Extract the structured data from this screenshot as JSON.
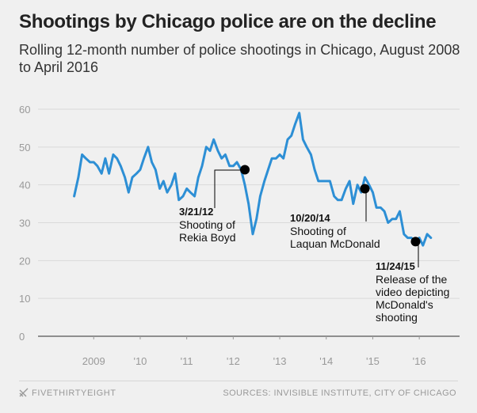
{
  "header": {
    "title": "Shootings by Chicago police are on the decline",
    "subtitle": "Rolling 12-month number of police shootings in Chicago, August 2008 to April 2016"
  },
  "footer": {
    "brand": "FIVETHIRTYEIGHT",
    "sources": "SOURCES: INVISIBLE INSTITUTE, CITY OF CHICAGO"
  },
  "colors": {
    "line": "#2d8fd5",
    "marker": "#000000",
    "axis_text": "#999999",
    "grid": "#d9d9d9"
  },
  "chart_data": {
    "type": "line",
    "title": "Shootings by Chicago police are on the decline",
    "subtitle": "Rolling 12-month number of police shootings in Chicago, August 2008 to April 2016",
    "xlabel": "",
    "ylabel": "",
    "xlim": [
      2008.5,
      2016.5
    ],
    "ylim": [
      0,
      60
    ],
    "yticks": [
      0,
      10,
      20,
      30,
      40,
      50,
      60
    ],
    "xticks": [
      {
        "value": 2009,
        "label": "2009"
      },
      {
        "value": 2010,
        "label": "'10"
      },
      {
        "value": 2011,
        "label": "'11"
      },
      {
        "value": 2012,
        "label": "'12"
      },
      {
        "value": 2013,
        "label": "'13"
      },
      {
        "value": 2014,
        "label": "'14"
      },
      {
        "value": 2015,
        "label": "'15"
      },
      {
        "value": 2016,
        "label": "'16"
      }
    ],
    "grid": true,
    "series": [
      {
        "name": "Rolling 12-month police shootings",
        "x": [
          2008.58,
          2008.67,
          2008.75,
          2008.83,
          2008.92,
          2009.0,
          2009.08,
          2009.17,
          2009.25,
          2009.33,
          2009.42,
          2009.5,
          2009.58,
          2009.67,
          2009.75,
          2009.83,
          2009.92,
          2010.0,
          2010.08,
          2010.17,
          2010.25,
          2010.33,
          2010.42,
          2010.5,
          2010.58,
          2010.67,
          2010.75,
          2010.83,
          2010.92,
          2011.0,
          2011.08,
          2011.17,
          2011.25,
          2011.33,
          2011.42,
          2011.5,
          2011.58,
          2011.67,
          2011.75,
          2011.83,
          2011.92,
          2012.0,
          2012.08,
          2012.17,
          2012.25,
          2012.33,
          2012.42,
          2012.5,
          2012.58,
          2012.67,
          2012.75,
          2012.83,
          2012.92,
          2013.0,
          2013.08,
          2013.17,
          2013.25,
          2013.33,
          2013.42,
          2013.5,
          2013.58,
          2013.67,
          2013.75,
          2013.83,
          2013.92,
          2014.0,
          2014.08,
          2014.17,
          2014.25,
          2014.33,
          2014.42,
          2014.5,
          2014.58,
          2014.67,
          2014.75,
          2014.83,
          2014.92,
          2015.0,
          2015.08,
          2015.17,
          2015.25,
          2015.33,
          2015.42,
          2015.5,
          2015.58,
          2015.67,
          2015.75,
          2015.83,
          2015.92,
          2016.0,
          2016.08,
          2016.17,
          2016.25
        ],
        "values": [
          37,
          42,
          48,
          47,
          46,
          46,
          45,
          43,
          47,
          43,
          48,
          47,
          45,
          42,
          38,
          42,
          43,
          44,
          47,
          50,
          46,
          44,
          39,
          41,
          38,
          40,
          43,
          36,
          37,
          39,
          38,
          37,
          42,
          45,
          50,
          49,
          52,
          49,
          47,
          48,
          45,
          45,
          46,
          44,
          40,
          35,
          27,
          31,
          37,
          41,
          44,
          47,
          47,
          48,
          47,
          52,
          53,
          56,
          59,
          52,
          50,
          48,
          44,
          41,
          41,
          41,
          41,
          37,
          36,
          36,
          39,
          41,
          35,
          40,
          38,
          42,
          40,
          38,
          34,
          34,
          33,
          30,
          31,
          31,
          33,
          27,
          26,
          26,
          25,
          26,
          24,
          27,
          26
        ]
      }
    ],
    "annotations": [
      {
        "x": 2012.25,
        "y": 44,
        "date": "3/21/12",
        "text": "Shooting of Rekia Boyd"
      },
      {
        "x": 2014.83,
        "y": 39,
        "date": "10/20/14",
        "text": "Shooting of Laquan McDonald"
      },
      {
        "x": 2015.92,
        "y": 25,
        "date": "11/24/15",
        "text": "Release of the video depicting McDonald's shooting"
      }
    ]
  }
}
